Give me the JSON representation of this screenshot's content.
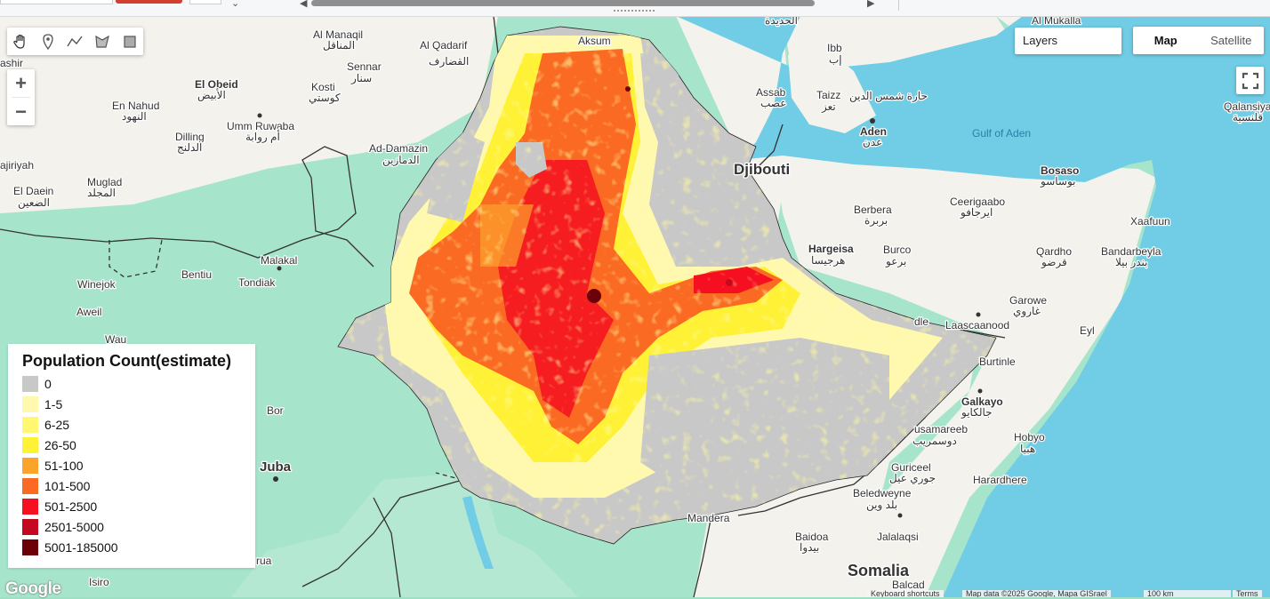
{
  "map_controls": {
    "zoom_in": "+",
    "zoom_out": "−",
    "layers_label": "Layers",
    "map_type_map": "Map",
    "map_type_satellite": "Satellite"
  },
  "legend": {
    "title": "Population Count(estimate)",
    "items": [
      {
        "label": "0",
        "color": "#c8c8c8"
      },
      {
        "label": "1-5",
        "color": "#fff9b0"
      },
      {
        "label": "6-25",
        "color": "#fff870"
      },
      {
        "label": "26-50",
        "color": "#fff236"
      },
      {
        "label": "51-100",
        "color": "#fca32c"
      },
      {
        "label": "101-500",
        "color": "#fb6a22"
      },
      {
        "label": "501-2500",
        "color": "#f50f20"
      },
      {
        "label": "2501-5000",
        "color": "#c40820"
      },
      {
        "label": "5001-185000",
        "color": "#6b0009"
      }
    ]
  },
  "labels": [
    {
      "id": "al-manaqil",
      "text": "Al Manaqil",
      "ar": "المناقل"
    },
    {
      "id": "al-qadarif",
      "text": "Al Qadarif",
      "ar": "القضارف"
    },
    {
      "id": "aksum",
      "text": "Aksum",
      "ar": ""
    },
    {
      "id": "el-obeid",
      "text": "El Obeid",
      "ar": "الأبيض"
    },
    {
      "id": "sennar",
      "text": "Sennar",
      "ar": "سنار"
    },
    {
      "id": "kosti",
      "text": "Kosti",
      "ar": "كوستي"
    },
    {
      "id": "en-nahud",
      "text": "En Nahud",
      "ar": "النهود"
    },
    {
      "id": "umm-ruwaba",
      "text": "Umm Ruwaba",
      "ar": "أم روابة"
    },
    {
      "id": "dilling",
      "text": "Dilling",
      "ar": "الدلنج"
    },
    {
      "id": "ad-damazin",
      "text": "Ad-Damazin",
      "ar": "الدمازين"
    },
    {
      "id": "muglad",
      "text": "Muglad",
      "ar": "المجلد"
    },
    {
      "id": "el-daein",
      "text": "El Daein",
      "ar": "الضعين"
    },
    {
      "id": "ashir",
      "text": "ashir",
      "ar": ""
    },
    {
      "id": "ajiriyah",
      "text": "ajiriyah",
      "ar": ""
    },
    {
      "id": "bentiu",
      "text": "Bentiu",
      "ar": ""
    },
    {
      "id": "malakal",
      "text": "Malakal",
      "ar": ""
    },
    {
      "id": "winejok",
      "text": "Winejok",
      "ar": ""
    },
    {
      "id": "tondiak",
      "text": "Tondiak",
      "ar": ""
    },
    {
      "id": "aweil",
      "text": "Aweil",
      "ar": ""
    },
    {
      "id": "wau",
      "text": "Wau",
      "ar": ""
    },
    {
      "id": "bor",
      "text": "Bor",
      "ar": ""
    },
    {
      "id": "juba",
      "text": "Juba",
      "ar": ""
    },
    {
      "id": "yirol",
      "text": "rua",
      "ar": ""
    },
    {
      "id": "isiro",
      "text": "Isiro",
      "ar": ""
    },
    {
      "id": "djibouti",
      "text": "Djibouti",
      "ar": ""
    },
    {
      "id": "assab",
      "text": "Assab",
      "ar": "عصب"
    },
    {
      "id": "ibb",
      "text": "Ibb",
      "ar": "إب"
    },
    {
      "id": "taizz",
      "text": "Taizz",
      "ar": "تعز"
    },
    {
      "id": "aden",
      "text": "Aden",
      "ar": "عدن"
    },
    {
      "id": "hodeidah",
      "text": "",
      "ar": "الحديدة"
    },
    {
      "id": "al-mukalla",
      "text": "Al Mukalla",
      "ar": ""
    },
    {
      "id": "haret",
      "text": "",
      "ar": "حارة شمس الدين"
    },
    {
      "id": "gulf-of-aden",
      "text": "Gulf of Aden",
      "ar": ""
    },
    {
      "id": "qalansiya",
      "text": "Qalansiya",
      "ar": "قلنسية"
    },
    {
      "id": "bosaso",
      "text": "Bosaso",
      "ar": "بوساسو"
    },
    {
      "id": "berbera",
      "text": "Berbera",
      "ar": "بربرة"
    },
    {
      "id": "ceerigaabo",
      "text": "Ceerigaabo",
      "ar": "ايرجافو"
    },
    {
      "id": "xaafuun",
      "text": "Xaafuun",
      "ar": ""
    },
    {
      "id": "hargeisa",
      "text": "Hargeisa",
      "ar": "هرجيسا"
    },
    {
      "id": "burco",
      "text": "Burco",
      "ar": "برعو"
    },
    {
      "id": "qardho",
      "text": "Qardho",
      "ar": "قرضو"
    },
    {
      "id": "bandarbeyla",
      "text": "Bandarbeyla",
      "ar": "بندر بيلا"
    },
    {
      "id": "garowe",
      "text": "Garowe",
      "ar": "غاروي"
    },
    {
      "id": "laascaanood",
      "text": "Laascaanood",
      "ar": ""
    },
    {
      "id": "eyl",
      "text": "Eyl",
      "ar": ""
    },
    {
      "id": "burtinle",
      "text": "Burtinle",
      "ar": ""
    },
    {
      "id": "galkayo",
      "text": "Galkayo",
      "ar": "جالكايو"
    },
    {
      "id": "dusamareeb",
      "text": "usamareeb",
      "ar": "دوسمريب"
    },
    {
      "id": "hobyo",
      "text": "Hobyo",
      "ar": "هبيا"
    },
    {
      "id": "guriceel",
      "text": "Guriceel",
      "ar": "جوري عيل"
    },
    {
      "id": "harardhere",
      "text": "Harardhere",
      "ar": ""
    },
    {
      "id": "beledweyne",
      "text": "Beledweyne",
      "ar": "بلد وين"
    },
    {
      "id": "baidoa",
      "text": "Baidoa",
      "ar": "بيدوا"
    },
    {
      "id": "jalalaqsi",
      "text": "Jalalaqsi",
      "ar": ""
    },
    {
      "id": "somalia",
      "text": "Somalia",
      "ar": ""
    },
    {
      "id": "balcad",
      "text": "Balcad",
      "ar": ""
    },
    {
      "id": "mandera",
      "text": "Mandera",
      "ar": ""
    },
    {
      "id": "galdle",
      "text": "dle",
      "ar": ""
    }
  ],
  "footer": {
    "google": "Google",
    "shortcuts": "Keyboard shortcuts",
    "attribution": "Map data ©2025 Google, Mapa GISrael",
    "scale": "100 km",
    "terms": "Terms"
  },
  "colors": {
    "land_green": "#a6e5cb",
    "land_desert": "#f4f2ec",
    "water": "#71cde6",
    "border": "#333333"
  }
}
